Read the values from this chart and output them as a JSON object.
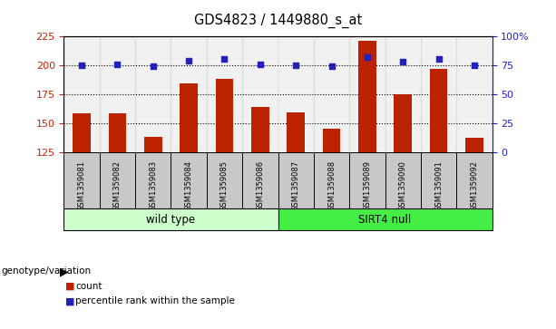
{
  "title": "GDS4823 / 1449880_s_at",
  "samples": [
    "GSM1359081",
    "GSM1359082",
    "GSM1359083",
    "GSM1359084",
    "GSM1359085",
    "GSM1359086",
    "GSM1359087",
    "GSM1359088",
    "GSM1359089",
    "GSM1359090",
    "GSM1359091",
    "GSM1359092"
  ],
  "counts": [
    158,
    158,
    138,
    184,
    188,
    164,
    159,
    145,
    221,
    175,
    197,
    137
  ],
  "percentiles": [
    75,
    76,
    74,
    79,
    80,
    76,
    75,
    74,
    82,
    78,
    80,
    75
  ],
  "ylim_left": [
    125,
    225
  ],
  "ylim_right": [
    0,
    100
  ],
  "yticks_left": [
    125,
    150,
    175,
    200,
    225
  ],
  "yticks_right": [
    0,
    25,
    50,
    75,
    100
  ],
  "ytick_labels_right": [
    "0",
    "25",
    "50",
    "75",
    "100%"
  ],
  "bar_color": "#bb2200",
  "dot_color": "#2222bb",
  "wild_type_label": "wild type",
  "sirt4_null_label": "SIRT4 null",
  "genotype_label": "genotype/variation",
  "legend_count": "count",
  "legend_percentile": "percentile rank within the sample",
  "bg_color_wildtype": "#ccffcc",
  "bg_color_sirt4": "#44ee44",
  "bg_color_samples": "#c8c8c8",
  "bar_width": 0.5,
  "tick_label_color_left": "#cc2200",
  "tick_label_color_right": "#2222cc",
  "n_wild": 6,
  "n_sirt4": 6
}
